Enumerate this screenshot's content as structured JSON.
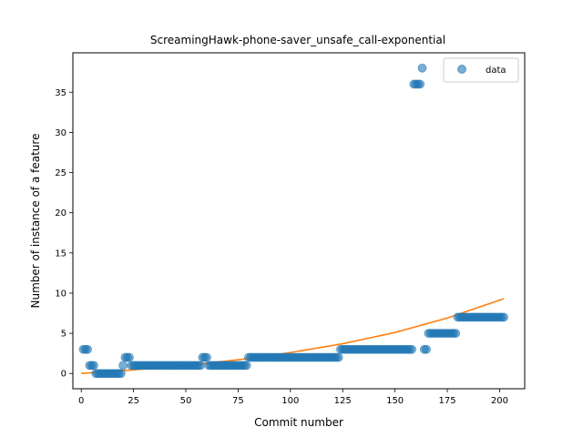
{
  "chart_data": {
    "type": "scatter",
    "title": "ScreamingHawk-phone-saver_unsafe_call-exponential",
    "xlabel": "Commit number",
    "ylabel": "Number of instance of a feature",
    "xlim": [
      -4,
      212
    ],
    "ylim": [
      -1.9,
      39.9
    ],
    "xticks": [
      0,
      25,
      50,
      75,
      100,
      125,
      150,
      175,
      200
    ],
    "yticks": [
      0,
      5,
      10,
      15,
      20,
      25,
      30,
      35
    ],
    "grid": false,
    "legend": {
      "placement": "top-right",
      "entries": [
        "data"
      ]
    },
    "colors": {
      "points": "#1f77b4",
      "fit": "#ff7f0e"
    },
    "series": [
      {
        "name": "data",
        "kind": "scatter",
        "segments": [
          {
            "from": 1,
            "to": 3,
            "y": 3
          },
          {
            "from": 4,
            "to": 6,
            "y": 1
          },
          {
            "from": 7,
            "to": 19,
            "y": 0
          },
          {
            "from": 20,
            "to": 20,
            "y": 1
          },
          {
            "from": 21,
            "to": 23,
            "y": 2
          },
          {
            "from": 24,
            "to": 57,
            "y": 1
          },
          {
            "from": 58,
            "to": 60,
            "y": 2
          },
          {
            "from": 61,
            "to": 79,
            "y": 1
          },
          {
            "from": 80,
            "to": 123,
            "y": 2
          },
          {
            "from": 124,
            "to": 158,
            "y": 3
          },
          {
            "from": 159,
            "to": 162,
            "y": 36
          },
          {
            "from": 163,
            "to": 163,
            "y": 38
          },
          {
            "from": 164,
            "to": 165,
            "y": 3
          },
          {
            "from": 166,
            "to": 179,
            "y": 5
          },
          {
            "from": 180,
            "to": 202,
            "y": 7
          }
        ]
      },
      {
        "kind": "line",
        "x": [
          0,
          25,
          50,
          75,
          100,
          125,
          150,
          175,
          202
        ],
        "y": [
          0.0,
          0.45,
          1.0,
          1.7,
          2.6,
          3.7,
          5.1,
          6.9,
          9.3
        ]
      }
    ]
  }
}
